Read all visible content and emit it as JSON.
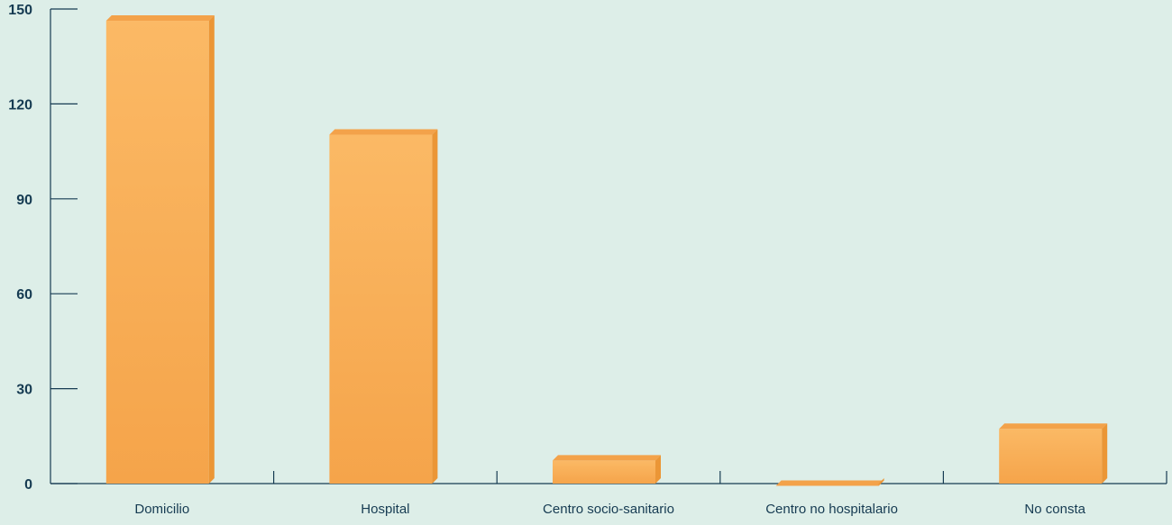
{
  "chart_data": {
    "type": "bar",
    "categories": [
      "Domicilio",
      "Hospital",
      "Centro socio-sanitario",
      "Centro no hospitalario",
      "No consta"
    ],
    "values": [
      148,
      112,
      9,
      1,
      19
    ],
    "ylim": [
      0,
      150
    ],
    "yticks": [
      0,
      30,
      60,
      90,
      120,
      150
    ],
    "title": "",
    "xlabel": "",
    "ylabel": "",
    "grid": false,
    "legend": "none",
    "colors": {
      "bar_front": "#f7a94c",
      "bar_top": "#f3a24a",
      "bar_side": "#eb9636",
      "axis": "#163b52",
      "text": "#163b52",
      "background": "#ddeee8"
    }
  }
}
